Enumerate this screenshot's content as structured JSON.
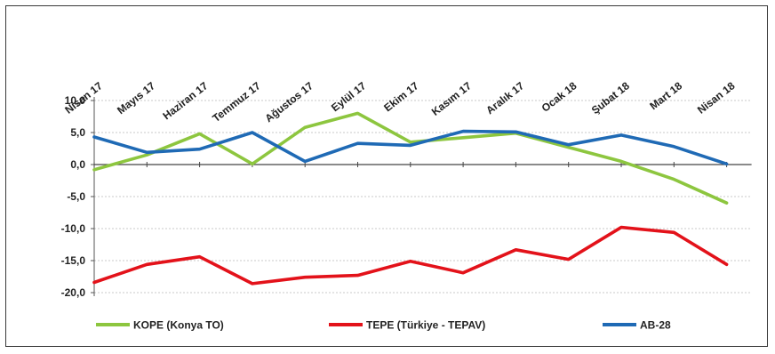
{
  "chart_data": {
    "type": "line",
    "categories": [
      "Nisan 17",
      "Mayıs 17",
      "Haziran 17",
      "Temmuz 17",
      "Ağustos 17",
      "Eylül 17",
      "Ekim 17",
      "Kasım 17",
      "Aralık 17",
      "Ocak 18",
      "Şubat 18",
      "Mart 18",
      "Nisan 18"
    ],
    "yticks": [
      "10,0",
      "5,0",
      "0,0",
      "-5,0",
      "-10,0",
      "-15,0",
      "-20,0"
    ],
    "ylim": [
      -20,
      10
    ],
    "grid": true,
    "legend_position": "bottom",
    "series": [
      {
        "name": "KOPE (Konya TO)",
        "color": "#8dc63f",
        "values": [
          -0.8,
          1.5,
          4.8,
          0.1,
          5.8,
          8.0,
          3.5,
          4.2,
          4.9,
          2.7,
          0.5,
          -2.3,
          -6.0
        ]
      },
      {
        "name": "TEPE (Türkiye - TEPAV)",
        "color": "#e3121a",
        "values": [
          -18.4,
          -15.6,
          -14.4,
          -18.6,
          -17.6,
          -17.3,
          -15.1,
          -16.9,
          -13.3,
          -14.8,
          -9.8,
          -10.6,
          -15.6
        ]
      },
      {
        "name": "AB-28",
        "color": "#1f6ab5",
        "values": [
          4.3,
          1.9,
          2.4,
          5.0,
          0.5,
          3.3,
          3.0,
          5.2,
          5.1,
          3.1,
          4.6,
          2.8,
          0.1
        ]
      }
    ]
  }
}
